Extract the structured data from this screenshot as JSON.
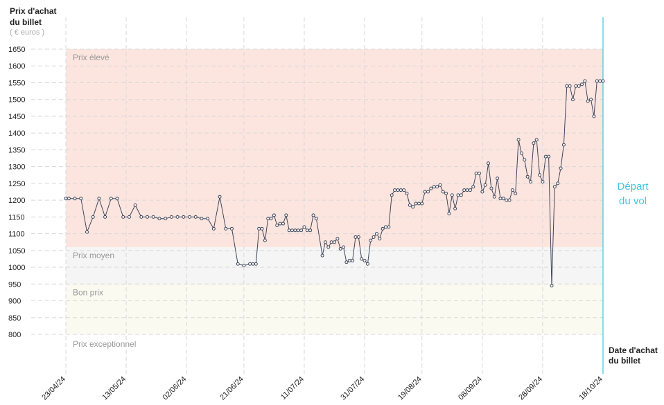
{
  "chart_data": {
    "type": "line",
    "y_label": [
      "Prix d'achat",
      "du billet"
    ],
    "y_unit": "( € euros )",
    "x_label": [
      "Date d'achat",
      "du billet"
    ],
    "departure_label": [
      "Départ",
      "du vol"
    ],
    "departure_color": "#3cc8e0",
    "color": "#3d4458",
    "grid": true,
    "bands": [
      {
        "name": "Prix élevé",
        "range": [
          1060,
          1650
        ],
        "color": "#fde5df"
      },
      {
        "name": "Prix moyen",
        "range": [
          950,
          1060
        ],
        "color": "#f5f5f5"
      },
      {
        "name": "Bon prix",
        "range": [
          800,
          950
        ],
        "color": "#fafaf0"
      },
      {
        "name": "Prix exceptionnel"
      }
    ],
    "ylim": [
      800,
      1650
    ],
    "yticks": [
      800,
      850,
      900,
      950,
      1000,
      1050,
      1100,
      1150,
      1200,
      1250,
      1300,
      1350,
      1400,
      1450,
      1500,
      1550,
      1600,
      1650
    ],
    "xlim": [
      "2024-04-23",
      "2024-10-18"
    ],
    "xticks": [
      {
        "value": "2024-04-23",
        "label": "23/04/24"
      },
      {
        "value": "2024-05-13",
        "label": "13/05/24"
      },
      {
        "value": "2024-06-02",
        "label": "02/06/24"
      },
      {
        "value": "2024-06-21",
        "label": "21/06/24"
      },
      {
        "value": "2024-07-11",
        "label": "11/07/24"
      },
      {
        "value": "2024-07-31",
        "label": "31/07/24"
      },
      {
        "value": "2024-08-19",
        "label": "19/08/24"
      },
      {
        "value": "2024-09-08",
        "label": "08/09/24"
      },
      {
        "value": "2024-09-28",
        "label": "28/09/24"
      },
      {
        "value": "2024-10-18",
        "label": "18/10/24"
      }
    ],
    "x": [
      "2024-04-23",
      "2024-04-24",
      "2024-04-26",
      "2024-04-28",
      "2024-04-30",
      "2024-05-02",
      "2024-05-04",
      "2024-05-06",
      "2024-05-08",
      "2024-05-10",
      "2024-05-12",
      "2024-05-14",
      "2024-05-16",
      "2024-05-18",
      "2024-05-20",
      "2024-05-22",
      "2024-05-24",
      "2024-05-26",
      "2024-05-28",
      "2024-05-30",
      "2024-06-01",
      "2024-06-03",
      "2024-06-05",
      "2024-06-07",
      "2024-06-09",
      "2024-06-11",
      "2024-06-13",
      "2024-06-15",
      "2024-06-17",
      "2024-06-19",
      "2024-06-21",
      "2024-06-23",
      "2024-06-24",
      "2024-06-25",
      "2024-06-26",
      "2024-06-27",
      "2024-06-28",
      "2024-06-29",
      "2024-06-30",
      "2024-07-01",
      "2024-07-02",
      "2024-07-03",
      "2024-07-04",
      "2024-07-05",
      "2024-07-06",
      "2024-07-07",
      "2024-07-08",
      "2024-07-09",
      "2024-07-10",
      "2024-07-11",
      "2024-07-12",
      "2024-07-13",
      "2024-07-14",
      "2024-07-15",
      "2024-07-17",
      "2024-07-18",
      "2024-07-19",
      "2024-07-20",
      "2024-07-21",
      "2024-07-22",
      "2024-07-23",
      "2024-07-24",
      "2024-07-25",
      "2024-07-26",
      "2024-07-27",
      "2024-07-28",
      "2024-07-29",
      "2024-07-30",
      "2024-07-31",
      "2024-08-01",
      "2024-08-02",
      "2024-08-03",
      "2024-08-04",
      "2024-08-05",
      "2024-08-06",
      "2024-08-07",
      "2024-08-08",
      "2024-08-09",
      "2024-08-10",
      "2024-08-11",
      "2024-08-12",
      "2024-08-13",
      "2024-08-14",
      "2024-08-15",
      "2024-08-16",
      "2024-08-17",
      "2024-08-18",
      "2024-08-19",
      "2024-08-20",
      "2024-08-21",
      "2024-08-22",
      "2024-08-23",
      "2024-08-24",
      "2024-08-25",
      "2024-08-26",
      "2024-08-27",
      "2024-08-28",
      "2024-08-29",
      "2024-08-30",
      "2024-08-31",
      "2024-09-01",
      "2024-09-02",
      "2024-09-03",
      "2024-09-04",
      "2024-09-05",
      "2024-09-06",
      "2024-09-07",
      "2024-09-08",
      "2024-09-09",
      "2024-09-10",
      "2024-09-11",
      "2024-09-12",
      "2024-09-13",
      "2024-09-14",
      "2024-09-15",
      "2024-09-16",
      "2024-09-17",
      "2024-09-18",
      "2024-09-19",
      "2024-09-20",
      "2024-09-21",
      "2024-09-22",
      "2024-09-23",
      "2024-09-24",
      "2024-09-25",
      "2024-09-26",
      "2024-09-27",
      "2024-09-28",
      "2024-09-29",
      "2024-09-30",
      "2024-10-01",
      "2024-10-02",
      "2024-10-03",
      "2024-10-04",
      "2024-10-05",
      "2024-10-06",
      "2024-10-07",
      "2024-10-08",
      "2024-10-09",
      "2024-10-10",
      "2024-10-11",
      "2024-10-12",
      "2024-10-13",
      "2024-10-14",
      "2024-10-15",
      "2024-10-16",
      "2024-10-17",
      "2024-10-18"
    ],
    "values": [
      1205,
      1205,
      1205,
      1205,
      1105,
      1150,
      1205,
      1150,
      1205,
      1205,
      1150,
      1150,
      1185,
      1150,
      1150,
      1150,
      1145,
      1145,
      1150,
      1150,
      1150,
      1150,
      1150,
      1145,
      1145,
      1115,
      1210,
      1115,
      1115,
      1010,
      1005,
      1010,
      1010,
      1010,
      1115,
      1115,
      1080,
      1145,
      1145,
      1155,
      1125,
      1130,
      1130,
      1155,
      1110,
      1110,
      1110,
      1110,
      1110,
      1120,
      1110,
      1110,
      1155,
      1145,
      1035,
      1075,
      1060,
      1075,
      1075,
      1085,
      1055,
      1060,
      1015,
      1020,
      1020,
      1090,
      1090,
      1025,
      1020,
      1010,
      1080,
      1090,
      1100,
      1085,
      1115,
      1120,
      1120,
      1215,
      1230,
      1230,
      1230,
      1230,
      1220,
      1185,
      1180,
      1190,
      1190,
      1190,
      1225,
      1225,
      1235,
      1240,
      1240,
      1245,
      1225,
      1220,
      1160,
      1215,
      1175,
      1215,
      1215,
      1230,
      1230,
      1230,
      1240,
      1280,
      1280,
      1225,
      1245,
      1310,
      1235,
      1210,
      1265,
      1205,
      1205,
      1200,
      1200,
      1230,
      1220,
      1380,
      1340,
      1320,
      1270,
      1255,
      1370,
      1380,
      1275,
      1255,
      1330,
      1330,
      945,
      1240,
      1250,
      1295,
      1365,
      1540,
      1540,
      1500,
      1540,
      1540,
      1545,
      1555,
      1495,
      1500,
      1450,
      1555,
      1555,
      1555
    ]
  }
}
